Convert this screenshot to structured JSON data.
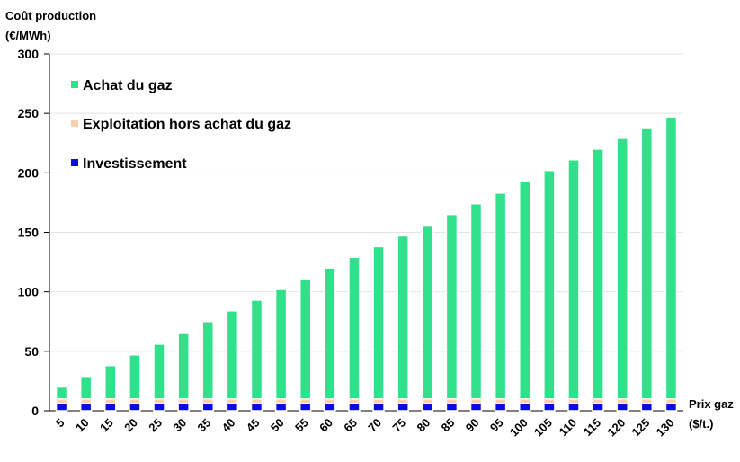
{
  "chart_data": {
    "type": "stacked_bar",
    "y_label": [
      "Coût production",
      "(€/MWh)"
    ],
    "x_label": [
      "Prix gaz",
      "($/t.)"
    ],
    "categories": [
      "5",
      "10",
      "15",
      "20",
      "25",
      "30",
      "35",
      "40",
      "45",
      "50",
      "55",
      "60",
      "65",
      "70",
      "75",
      "80",
      "85",
      "90",
      "95",
      "100",
      "105",
      "110",
      "115",
      "120",
      "125",
      "130"
    ],
    "series": [
      {
        "name": "Investissement",
        "color": "#0a0ae6",
        "values": [
          6,
          6,
          6,
          6,
          6,
          6,
          6,
          6,
          6,
          6,
          6,
          6,
          6,
          6,
          6,
          6,
          6,
          6,
          6,
          6,
          6,
          6,
          6,
          6,
          6,
          6
        ]
      },
      {
        "name": "Exploitation hors achat du gaz",
        "color": "#fbd0ae",
        "values": [
          4,
          4,
          4,
          4,
          4,
          4,
          4,
          4,
          4,
          4,
          4,
          4,
          4,
          4,
          4,
          4,
          4,
          4,
          4,
          4,
          4,
          4,
          4,
          4,
          4,
          4
        ]
      },
      {
        "name": "Achat du gaz",
        "color": "#31e08a",
        "values": [
          10,
          19,
          28,
          37,
          46,
          55,
          65,
          74,
          83,
          92,
          101,
          110,
          119,
          128,
          137,
          146,
          155,
          164,
          173,
          183,
          192,
          201,
          210,
          219,
          228,
          237
        ]
      }
    ],
    "ylim": [
      0,
      300
    ],
    "yticks": [
      0,
      50,
      100,
      150,
      200,
      250,
      300
    ],
    "grid": true,
    "legend": "upper-left"
  }
}
